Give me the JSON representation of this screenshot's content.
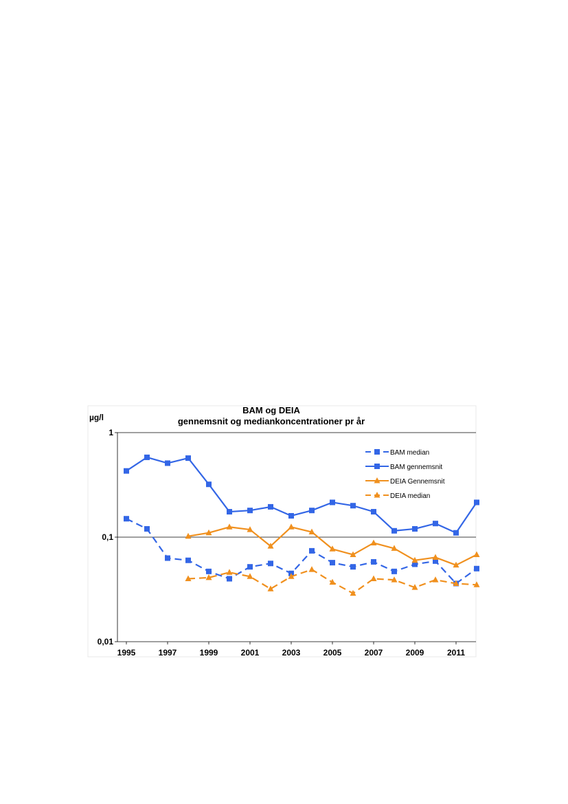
{
  "chart_data": {
    "type": "line",
    "title": "BAM og DEIA",
    "subtitle": "gennemsnit og mediankoncentrationer pr år",
    "ylabel": "µg/l",
    "xlabel": "",
    "yscale": "log",
    "ylim": [
      0.01,
      1
    ],
    "xlim": [
      1995,
      2012
    ],
    "y_tick_labels": [
      "1",
      "0,1",
      "0,01"
    ],
    "y_tick_values": [
      1,
      0.1,
      0.01
    ],
    "x_tick_labels": [
      "1995",
      "1997",
      "1999",
      "2001",
      "2003",
      "2005",
      "2007",
      "2009",
      "2011"
    ],
    "x_tick_values": [
      1995,
      1997,
      1999,
      2001,
      2003,
      2005,
      2007,
      2009,
      2011
    ],
    "grid": "horizontal major lines",
    "legend_position": "top-right",
    "series": [
      {
        "name": "BAM median",
        "color": "#3366e6",
        "line": "dashed",
        "marker": "square",
        "x": [
          1995,
          1996,
          1997,
          1998,
          1999,
          2000,
          2001,
          2002,
          2003,
          2004,
          2005,
          2006,
          2007,
          2008,
          2009,
          2010,
          2011,
          2012
        ],
        "values": [
          0.15,
          0.12,
          0.063,
          0.06,
          0.047,
          0.04,
          0.052,
          0.056,
          0.045,
          0.074,
          0.057,
          0.052,
          0.058,
          0.047,
          0.055,
          0.059,
          0.036,
          0.05
        ]
      },
      {
        "name": "BAM gennemsnit",
        "color": "#3366e6",
        "line": "solid",
        "marker": "square",
        "x": [
          1995,
          1996,
          1997,
          1998,
          1999,
          2000,
          2001,
          2002,
          2003,
          2004,
          2005,
          2006,
          2007,
          2008,
          2009,
          2010,
          2011,
          2012
        ],
        "values": [
          0.43,
          0.58,
          0.51,
          0.57,
          0.32,
          0.175,
          0.18,
          0.195,
          0.16,
          0.18,
          0.215,
          0.2,
          0.175,
          0.115,
          0.12,
          0.135,
          0.11,
          0.215
        ]
      },
      {
        "name": "DEIA Gennemsnit",
        "color": "#f0901e",
        "line": "solid",
        "marker": "triangle",
        "x": [
          1998,
          1999,
          2000,
          2001,
          2002,
          2003,
          2004,
          2005,
          2006,
          2007,
          2008,
          2009,
          2010,
          2011,
          2012
        ],
        "values": [
          0.102,
          0.11,
          0.125,
          0.118,
          0.082,
          0.125,
          0.112,
          0.077,
          0.068,
          0.088,
          0.078,
          0.06,
          0.064,
          0.054,
          0.068
        ]
      },
      {
        "name": "DEIA median",
        "color": "#f0901e",
        "line": "dashed",
        "marker": "triangle",
        "x": [
          1998,
          1999,
          2000,
          2001,
          2002,
          2003,
          2004,
          2005,
          2006,
          2007,
          2008,
          2009,
          2010,
          2011,
          2012
        ],
        "values": [
          0.04,
          0.041,
          0.046,
          0.042,
          0.032,
          0.042,
          0.049,
          0.037,
          0.029,
          0.04,
          0.039,
          0.033,
          0.039,
          0.036,
          0.035
        ]
      }
    ]
  }
}
